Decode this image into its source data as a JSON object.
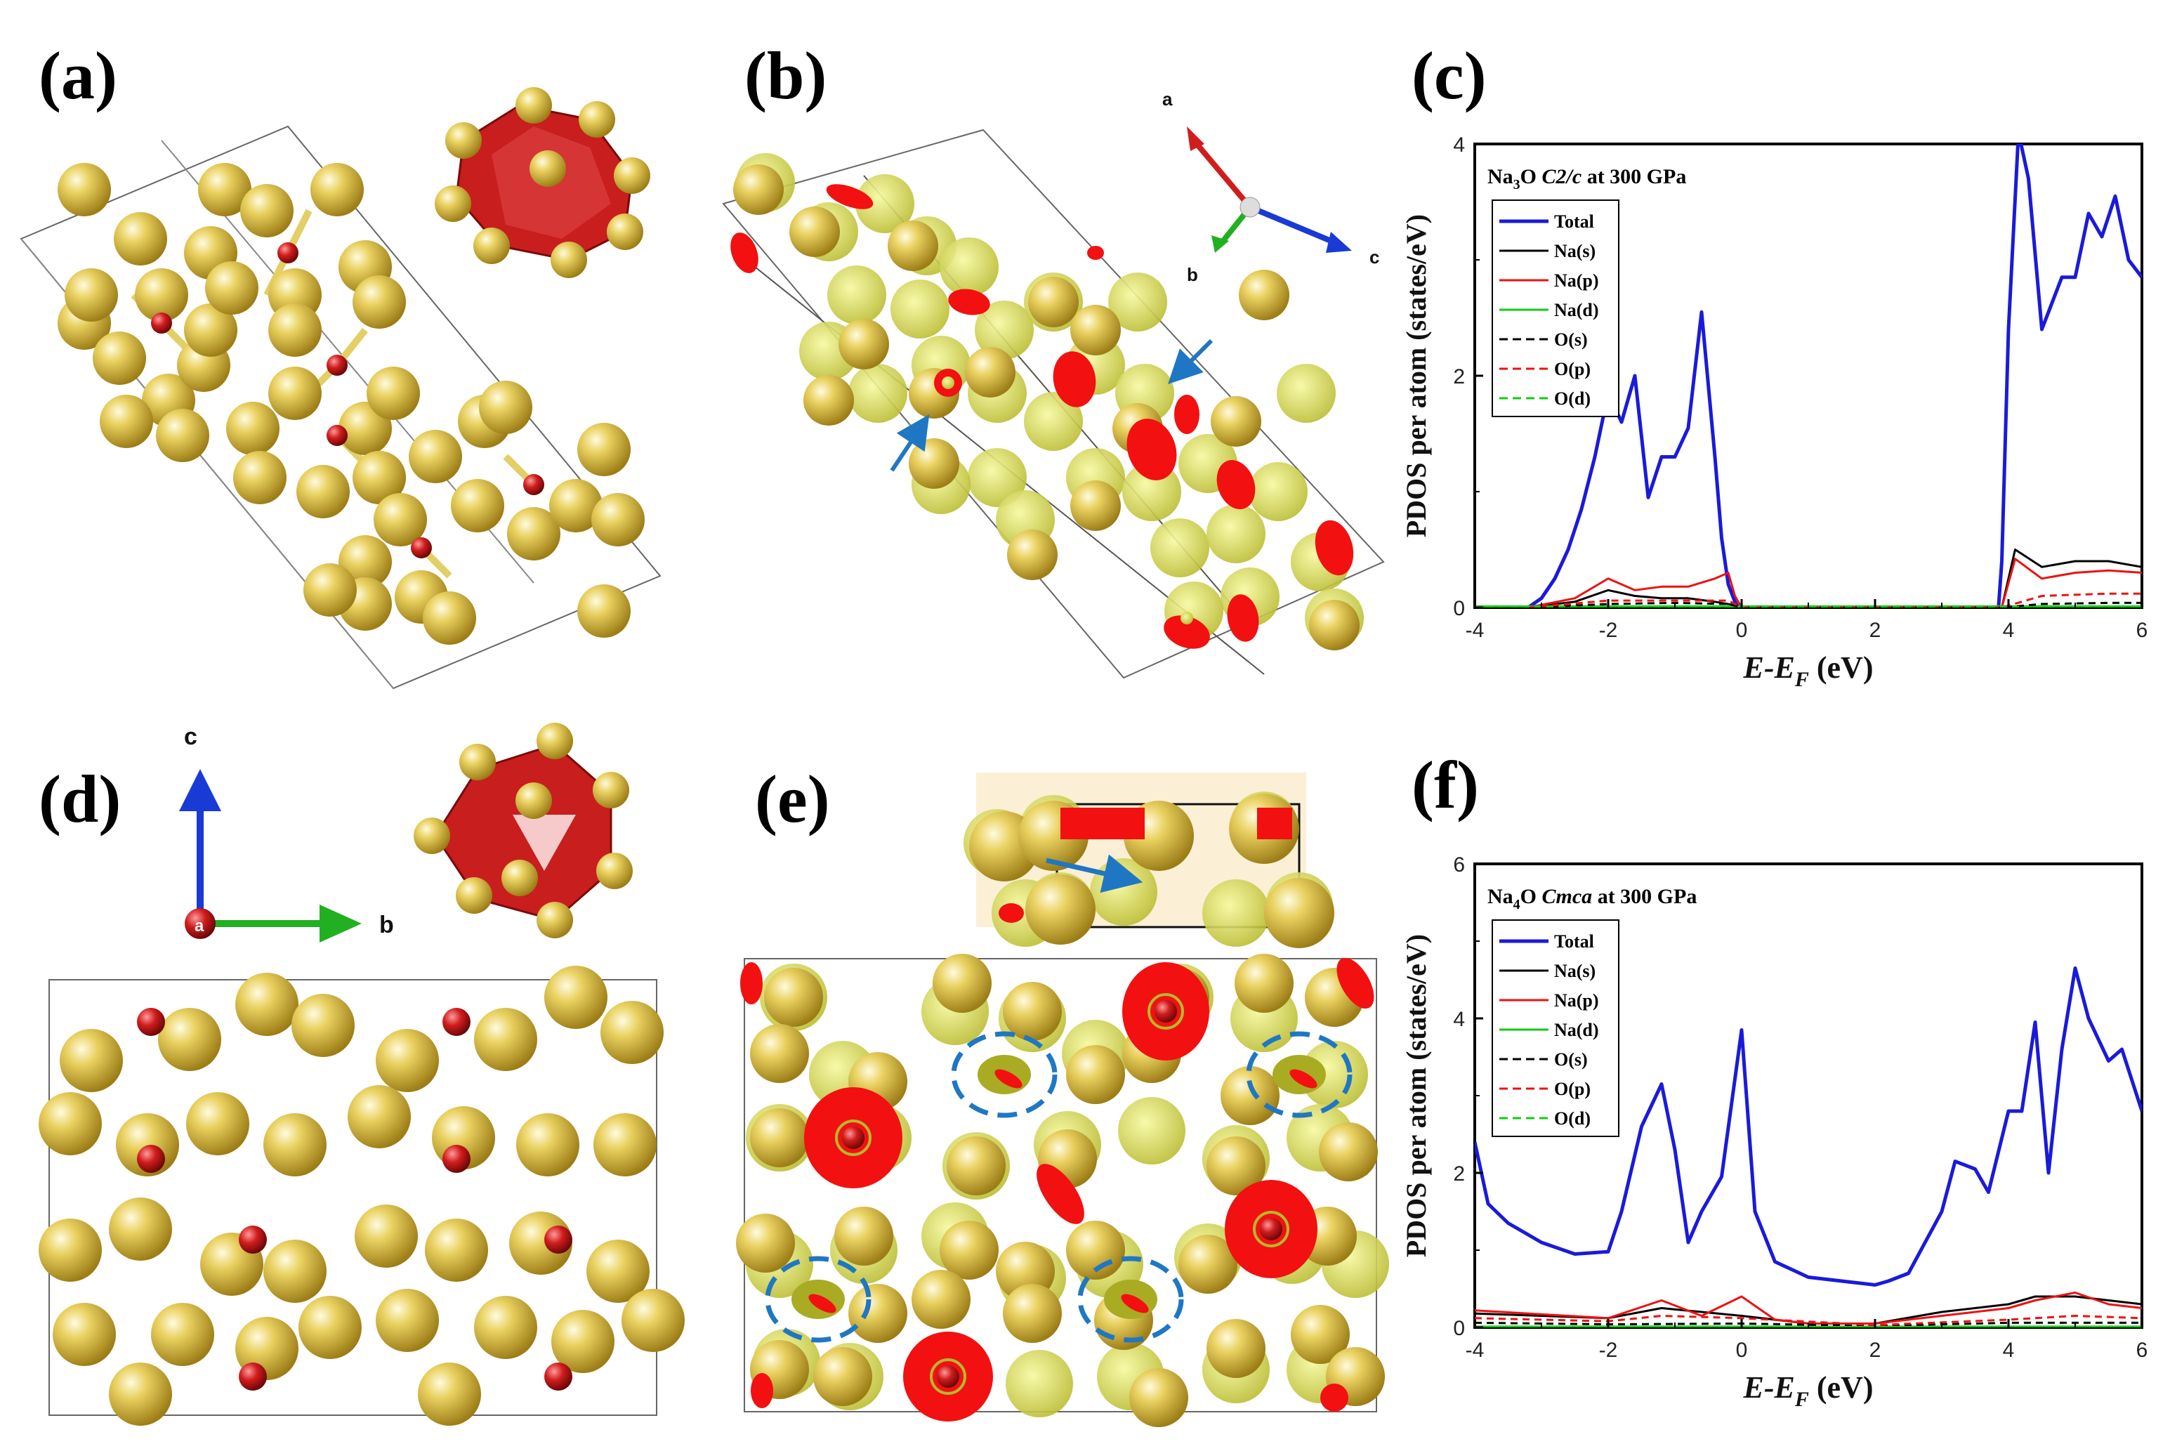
{
  "panels": {
    "a": "(a)",
    "b": "(b)",
    "c": "(c)",
    "d": "(d)",
    "e": "(e)",
    "f": "(f)"
  },
  "axes_b": {
    "a": "a",
    "b": "b",
    "c": "c"
  },
  "axes_d": {
    "a": "a",
    "b": "b",
    "c": "c"
  },
  "colors": {
    "na_atom": "#d8b93a",
    "o_atom": "#c81e1e",
    "elf": "#e6e84a",
    "elf_red": "#f21010",
    "arrow_blue": "#1f77c4",
    "total": "#1a1adb",
    "na_s": "#000000",
    "na_p": "#ee1111",
    "na_d": "#11cc11",
    "o_s": "#000000",
    "o_p": "#ee1111",
    "o_d": "#11cc11"
  },
  "chart_data": [
    {
      "id": "c",
      "type": "line",
      "title": "Na3O C2/c at 300 GPa",
      "title_parts": {
        "pre": "Na",
        "sub": "3",
        "mid": "O ",
        "italic": "C2/c",
        "post": " at 300 GPa"
      },
      "xlabel": "E-EF (eV)",
      "ylabel": "PDOS per atom (states/eV)",
      "xlim": [
        -4,
        6
      ],
      "ylim": [
        0,
        4
      ],
      "xticks": [
        -4,
        -2,
        0,
        2,
        4,
        6
      ],
      "yticks": [
        0,
        2,
        4
      ],
      "legend_position": "top-left",
      "series": [
        {
          "name": "Total",
          "x": [
            -3.2,
            -3.0,
            -2.8,
            -2.6,
            -2.4,
            -2.2,
            -2.0,
            -1.8,
            -1.6,
            -1.4,
            -1.2,
            -1.0,
            -0.8,
            -0.6,
            -0.4,
            -0.3,
            -0.2,
            -0.1,
            -0.05,
            3.85,
            3.9,
            4.0,
            4.15,
            4.3,
            4.5,
            4.8,
            5.0,
            5.2,
            5.4,
            5.6,
            5.8,
            6.0
          ],
          "y": [
            0,
            0.08,
            0.25,
            0.5,
            0.85,
            1.3,
            1.85,
            1.6,
            2.0,
            0.95,
            1.3,
            1.3,
            1.55,
            2.55,
            1.3,
            0.6,
            0.2,
            0.05,
            0,
            0,
            0.4,
            2.4,
            4.1,
            3.7,
            2.4,
            2.85,
            2.85,
            3.4,
            3.2,
            3.55,
            3.0,
            2.85
          ]
        },
        {
          "name": "Na(s)",
          "x": [
            -3.2,
            -2.5,
            -2.0,
            -1.6,
            -1.2,
            -0.8,
            -0.4,
            -0.1,
            0.0,
            3.9,
            4.1,
            4.5,
            5.0,
            5.5,
            6.0
          ],
          "y": [
            0,
            0.05,
            0.15,
            0.1,
            0.08,
            0.08,
            0.05,
            0.02,
            0,
            0,
            0.5,
            0.35,
            0.4,
            0.4,
            0.35
          ]
        },
        {
          "name": "Na(p)",
          "x": [
            -3.2,
            -2.5,
            -2.0,
            -1.6,
            -1.2,
            -0.8,
            -0.4,
            -0.2,
            -0.1,
            0.0,
            3.9,
            4.1,
            4.5,
            5.0,
            5.5,
            6.0
          ],
          "y": [
            0,
            0.08,
            0.25,
            0.15,
            0.18,
            0.18,
            0.25,
            0.3,
            0.1,
            0,
            0,
            0.42,
            0.25,
            0.3,
            0.32,
            0.3
          ]
        },
        {
          "name": "Na(d)",
          "x": [
            -4,
            6
          ],
          "y": [
            0.01,
            0.01
          ]
        },
        {
          "name": "O(s)",
          "x": [
            -3.2,
            -2.0,
            -1.0,
            -0.2,
            0.0,
            3.9,
            4.5,
            5.5,
            6.0
          ],
          "y": [
            0,
            0.03,
            0.04,
            0.03,
            0,
            0,
            0.03,
            0.04,
            0.04
          ]
        },
        {
          "name": "O(p)",
          "x": [
            -3.2,
            -2.0,
            -1.0,
            -0.2,
            0.0,
            3.9,
            4.5,
            5.5,
            6.0
          ],
          "y": [
            0,
            0.06,
            0.06,
            0.06,
            0,
            0,
            0.1,
            0.12,
            0.12
          ]
        },
        {
          "name": "O(d)",
          "x": [
            -4,
            6
          ],
          "y": [
            0.005,
            0.005
          ]
        }
      ]
    },
    {
      "id": "f",
      "type": "line",
      "title": "Na4O Cmca at 300 GPa",
      "title_parts": {
        "pre": "Na",
        "sub": "4",
        "mid": "O ",
        "italic": "Cmca",
        "post": " at 300 GPa"
      },
      "xlabel": "E-EF (eV)",
      "ylabel": "PDOS per atom (states/eV)",
      "xlim": [
        -4,
        6
      ],
      "ylim": [
        0,
        6
      ],
      "xticks": [
        -4,
        -2,
        0,
        2,
        4,
        6
      ],
      "yticks": [
        0,
        2,
        4,
        6
      ],
      "legend_position": "top-left",
      "series": [
        {
          "name": "Total",
          "x": [
            -4.0,
            -3.8,
            -3.5,
            -3.0,
            -2.5,
            -2.0,
            -1.8,
            -1.5,
            -1.2,
            -1.0,
            -0.8,
            -0.6,
            -0.3,
            0.0,
            0.2,
            0.5,
            1.0,
            1.5,
            2.0,
            2.2,
            2.5,
            3.0,
            3.2,
            3.5,
            3.7,
            4.0,
            4.2,
            4.4,
            4.6,
            4.8,
            5.0,
            5.2,
            5.5,
            5.7,
            6.0
          ],
          "y": [
            2.4,
            1.6,
            1.35,
            1.1,
            0.95,
            0.98,
            1.5,
            2.6,
            3.15,
            2.3,
            1.1,
            1.5,
            1.95,
            3.85,
            1.5,
            0.85,
            0.65,
            0.6,
            0.55,
            0.6,
            0.7,
            1.5,
            2.15,
            2.05,
            1.75,
            2.8,
            2.8,
            3.95,
            2.0,
            3.6,
            4.65,
            4.0,
            3.45,
            3.6,
            2.8
          ]
        },
        {
          "name": "Na(s)",
          "x": [
            -4,
            -2,
            -1.2,
            0,
            1,
            2,
            3,
            4,
            4.4,
            5,
            5.5,
            6
          ],
          "y": [
            0.18,
            0.12,
            0.25,
            0.15,
            0.05,
            0.05,
            0.2,
            0.3,
            0.4,
            0.4,
            0.35,
            0.3
          ]
        },
        {
          "name": "Na(p)",
          "x": [
            -4,
            -2,
            -1.2,
            -0.6,
            0,
            0.5,
            1,
            2,
            3,
            4,
            4.4,
            5,
            5.5,
            6
          ],
          "y": [
            0.22,
            0.12,
            0.35,
            0.15,
            0.4,
            0.1,
            0.05,
            0.05,
            0.15,
            0.25,
            0.35,
            0.45,
            0.3,
            0.25
          ]
        },
        {
          "name": "Na(d)",
          "x": [
            -4,
            6
          ],
          "y": [
            0.01,
            0.01
          ]
        },
        {
          "name": "O(s)",
          "x": [
            -4,
            -2,
            0,
            2,
            4,
            6
          ],
          "y": [
            0.06,
            0.04,
            0.05,
            0.02,
            0.06,
            0.06
          ]
        },
        {
          "name": "O(p)",
          "x": [
            -4,
            -2,
            -1.2,
            0,
            2,
            4,
            5,
            6
          ],
          "y": [
            0.12,
            0.08,
            0.15,
            0.12,
            0.03,
            0.1,
            0.15,
            0.12
          ]
        },
        {
          "name": "O(d)",
          "x": [
            -4,
            6
          ],
          "y": [
            0.005,
            0.005
          ]
        }
      ]
    }
  ]
}
